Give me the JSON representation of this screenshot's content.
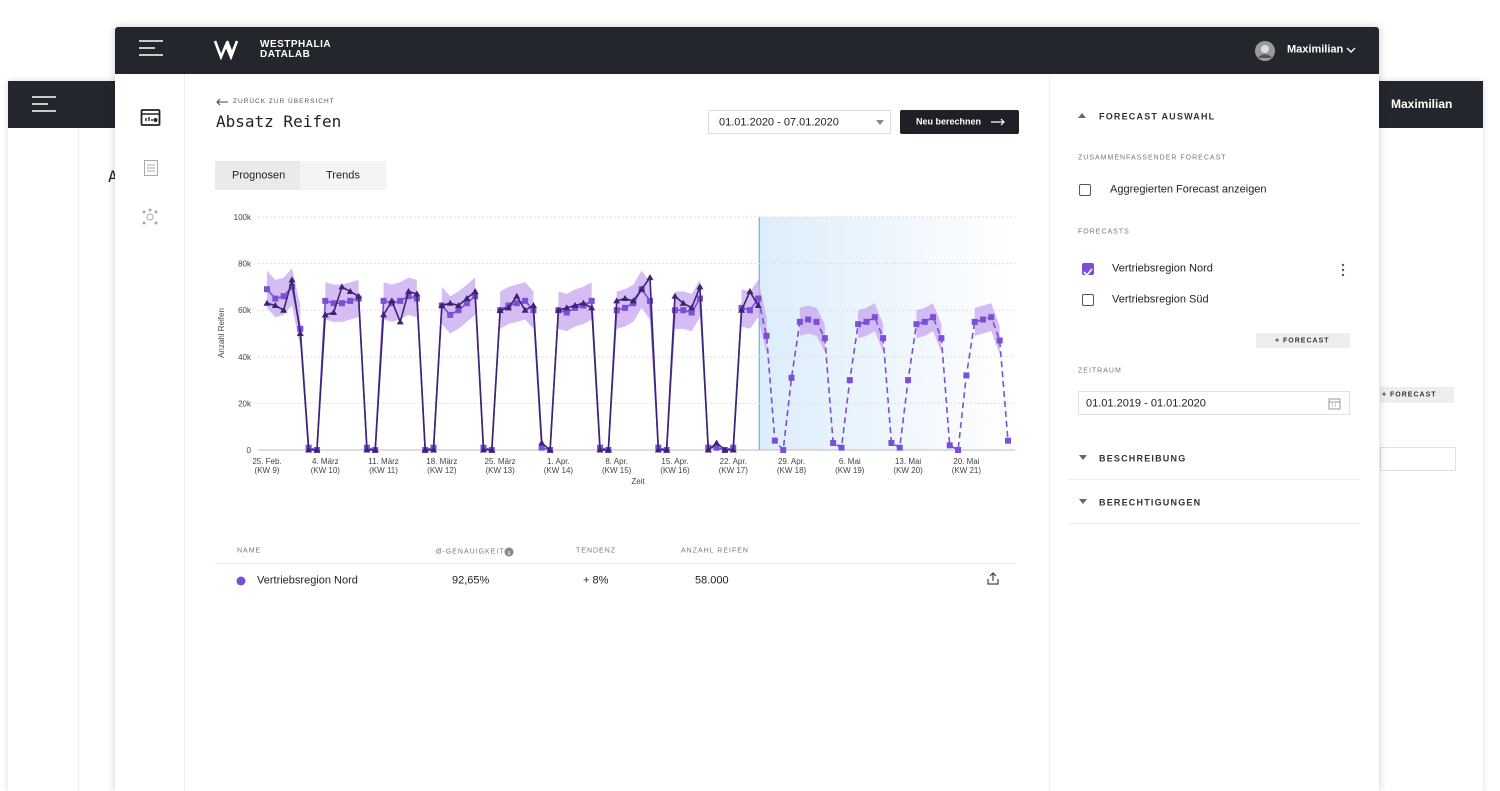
{
  "header": {
    "logo_line1": "WESTPHALIA",
    "logo_line2": "DATALAB",
    "user": "Maximilian"
  },
  "background_window": {
    "user": "Maximilian",
    "button": "+ FORECAST",
    "title_initial": "A"
  },
  "page": {
    "back": "ZURÜCK ZUR ÜBERSICHT",
    "title": "Absatz Reifen",
    "date_range": "01.01.2020 - 07.01.2020",
    "button": "Neu berechnen"
  },
  "tabs": [
    "Prognosen",
    "Trends"
  ],
  "chart_data": {
    "type": "line",
    "y_label": "Anzahl Reifen",
    "x_label": "Zeit",
    "ylim": [
      0,
      100000
    ],
    "yticks": [
      0,
      {
        "value": 20000,
        "label": "20k"
      },
      {
        "value": 40000,
        "label": "40k"
      },
      {
        "value": 60000,
        "label": "60k"
      },
      {
        "value": 80000,
        "label": "80k"
      },
      {
        "value": 100000,
        "label": "100k"
      }
    ],
    "grid": true,
    "categories": [
      "25. Feb.\n(KW 9)",
      null,
      null,
      null,
      null,
      null,
      null,
      "4. März\n(KW 10)",
      null,
      null,
      null,
      null,
      null,
      null,
      "11. März\n(KW 11)",
      null,
      null,
      null,
      null,
      null,
      null,
      "18. März\n(KW 12)",
      null,
      null,
      null,
      null,
      null,
      null,
      "25. März\n(KW 13)",
      null,
      null,
      null,
      null,
      null,
      null,
      "1. Apr.\n(KW 14)",
      null,
      null,
      null,
      null,
      null,
      null,
      "8. Apr.\n(KW 15)",
      null,
      null,
      null,
      null,
      null,
      null,
      "15. Apr.\n(KW 16)",
      null,
      null,
      null,
      null,
      null,
      null,
      "22. Apr.\n(KW 17)",
      null,
      null,
      null,
      null,
      null,
      null,
      "29. Apr.\n(KW 18)",
      null,
      null,
      null,
      null,
      null,
      null,
      "6. Mai\n(KW 19)",
      null,
      null,
      null,
      null,
      null,
      null,
      "13. Mai\n(KW 20)",
      null,
      null,
      null,
      null,
      null,
      null,
      "20. Mai\n(KW 21)",
      null,
      null,
      null,
      null,
      null
    ],
    "band": {
      "color": "#c7a6ef",
      "upper": [
        77000,
        73000,
        74000,
        78000,
        62000,
        null,
        null,
        72000,
        71000,
        71000,
        72000,
        73000,
        null,
        null,
        72000,
        71000,
        72000,
        74000,
        73000,
        null,
        null,
        70000,
        66000,
        68000,
        71000,
        74000,
        null,
        null,
        68000,
        70000,
        71000,
        72000,
        68000,
        null,
        null,
        68000,
        67000,
        69000,
        70000,
        72000,
        null,
        null,
        68000,
        69000,
        71000,
        77000,
        72000,
        null,
        null,
        68000,
        68000,
        67000,
        73000,
        null,
        null,
        null,
        null,
        69000,
        68000,
        73000,
        57000,
        null,
        null,
        null,
        61000,
        62000,
        61000,
        54000,
        null,
        null,
        null,
        60000,
        61000,
        63000,
        54000,
        null,
        null,
        null,
        60000,
        61000,
        63000,
        54000,
        null,
        null,
        null,
        61000,
        62000,
        63000,
        53000,
        null
      ],
      "lower": [
        61000,
        57000,
        58000,
        62000,
        44000,
        null,
        null,
        56000,
        55000,
        55000,
        56000,
        57000,
        null,
        null,
        56000,
        55000,
        56000,
        58000,
        57000,
        null,
        null,
        54000,
        50000,
        52000,
        55000,
        58000,
        null,
        null,
        52000,
        54000,
        55000,
        56000,
        52000,
        null,
        null,
        52000,
        51000,
        53000,
        54000,
        56000,
        null,
        null,
        52000,
        53000,
        55000,
        61000,
        56000,
        null,
        null,
        52000,
        52000,
        51000,
        57000,
        null,
        null,
        null,
        null,
        53000,
        52000,
        57000,
        41000,
        null,
        null,
        null,
        49000,
        50000,
        49000,
        42000,
        null,
        null,
        null,
        48000,
        49000,
        51000,
        42000,
        null,
        null,
        null,
        48000,
        49000,
        51000,
        42000,
        null,
        null,
        null,
        49000,
        50000,
        51000,
        41000,
        null
      ]
    },
    "series": [
      {
        "color": "#3b2470",
        "marker": "triangle",
        "dashed": false,
        "values": [
          63000,
          62000,
          60000,
          73000,
          50000,
          0,
          0,
          58000,
          59000,
          70000,
          68000,
          66000,
          0,
          0,
          58000,
          64000,
          55000,
          68000,
          67000,
          0,
          0,
          62000,
          63000,
          62000,
          65000,
          68000,
          0,
          0,
          60000,
          61000,
          66000,
          60000,
          62000,
          3000,
          0,
          60000,
          61000,
          62000,
          63000,
          61000,
          0,
          0,
          64000,
          65000,
          64000,
          69000,
          74000,
          0,
          0,
          66000,
          63000,
          61000,
          70000,
          0,
          3000,
          0,
          0,
          60000,
          68000,
          62000,
          null,
          null,
          null,
          null,
          null,
          null,
          null,
          null,
          null,
          null,
          null,
          null,
          null,
          null,
          null,
          null,
          null,
          null,
          null,
          null,
          null,
          null,
          null,
          null,
          null,
          null,
          null,
          null,
          null,
          null
        ]
      },
      {
        "color": "#7b4fd6",
        "marker": "square",
        "dashed": false,
        "values": [
          69000,
          65000,
          66000,
          70000,
          52000,
          1000,
          0,
          64000,
          63000,
          63000,
          64000,
          65000,
          1000,
          0,
          64000,
          63000,
          64000,
          66000,
          65000,
          0,
          1000,
          62000,
          58000,
          60000,
          63000,
          66000,
          1000,
          0,
          60000,
          62000,
          63000,
          64000,
          60000,
          1000,
          0,
          60000,
          59000,
          61000,
          62000,
          64000,
          1000,
          0,
          60000,
          61000,
          63000,
          69000,
          64000,
          1000,
          0,
          60000,
          60000,
          59000,
          65000,
          1000,
          1000,
          0,
          1000,
          61000,
          60000,
          65000,
          null,
          null,
          null,
          null,
          null,
          null,
          null,
          null,
          null,
          null,
          null,
          null,
          null,
          null,
          null,
          null,
          null,
          null,
          null,
          null,
          null,
          null,
          null,
          null,
          null,
          null,
          null,
          null,
          null,
          null
        ]
      },
      {
        "color": "#7b4fd6",
        "marker": "square",
        "dashed": true,
        "values": [
          null,
          null,
          null,
          null,
          null,
          null,
          null,
          null,
          null,
          null,
          null,
          null,
          null,
          null,
          null,
          null,
          null,
          null,
          null,
          null,
          null,
          null,
          null,
          null,
          null,
          null,
          null,
          null,
          null,
          null,
          null,
          null,
          null,
          null,
          null,
          null,
          null,
          null,
          null,
          null,
          null,
          null,
          null,
          null,
          null,
          null,
          null,
          null,
          null,
          null,
          null,
          null,
          null,
          null,
          null,
          null,
          null,
          null,
          null,
          65000,
          49000,
          4000,
          0,
          31000,
          55000,
          56000,
          55000,
          48000,
          3000,
          1000,
          30000,
          54000,
          55000,
          57000,
          48000,
          3000,
          1000,
          30000,
          54000,
          55000,
          57000,
          48000,
          2000,
          0,
          32000,
          55000,
          56000,
          57000,
          47000,
          4000
        ]
      }
    ]
  },
  "table": {
    "headers": [
      "NAME",
      "Ø-GENAUIGKEIT",
      "TENDENZ",
      "ANZAHL REIFEN"
    ],
    "rows": [
      [
        "Vertriebsregion Nord",
        "92,65%",
        "+ 8%",
        "58.000"
      ]
    ]
  },
  "sidebar": {
    "section_title": "FORECAST AUSWAHL",
    "summary_label": "ZUSAMMENFASSENDER FORECAST",
    "summary_option": "Aggregierten Forecast anzeigen",
    "forecasts_label": "FORECASTS",
    "forecasts": [
      {
        "name": "Vertriebsregion Nord",
        "checked": true
      },
      {
        "name": "Vertriebsregion Süd",
        "checked": false
      }
    ],
    "add_button": "+ FORECAST",
    "period_label": "ZEITRAUM",
    "period": "01.01.2019 - 01.01.2020",
    "sections": [
      "BESCHREIBUNG",
      "BERECHTIGUNGEN"
    ]
  }
}
